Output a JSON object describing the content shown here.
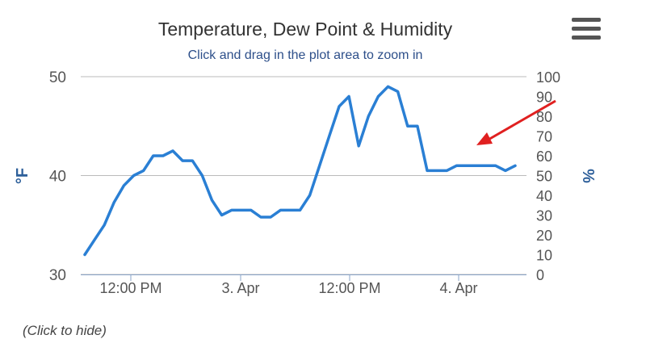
{
  "chart_data": {
    "type": "line",
    "title": "Temperature, Dew Point & Humidity",
    "subtitle": "Click and drag in the plot area to zoom in",
    "y_left": {
      "label": "°F",
      "min": 30,
      "max": 50,
      "ticks": [
        "30",
        "40",
        "50"
      ]
    },
    "y_right": {
      "label": "%",
      "min": 0,
      "max": 100,
      "ticks": [
        "0",
        "10",
        "20",
        "30",
        "40",
        "50",
        "60",
        "70",
        "80",
        "90",
        "100"
      ]
    },
    "x_ticks": [
      "12:00 PM",
      "3. Apr",
      "12:00 PM",
      "4. Apr"
    ],
    "grid": "horizontal",
    "series": [
      {
        "color": "#2a7fd4",
        "axis": "left",
        "values": [
          32.0,
          33.5,
          35.0,
          37.3,
          39.0,
          40.0,
          40.5,
          42.0,
          42.0,
          42.5,
          41.5,
          41.5,
          40.0,
          37.5,
          36.0,
          36.5,
          36.5,
          36.5,
          35.8,
          35.8,
          36.5,
          36.5,
          36.5,
          38.0,
          41.0,
          44.0,
          47.0,
          48.0,
          43.0,
          46.0,
          48.0,
          49.0,
          48.5,
          45.0,
          45.0,
          40.5,
          40.5,
          40.5,
          41.0,
          41.0,
          41.0,
          41.0,
          41.0,
          40.5,
          41.0
        ]
      }
    ]
  },
  "footer": {
    "hint": "(Click to hide)"
  },
  "annotation": {
    "color": "#e02020"
  }
}
